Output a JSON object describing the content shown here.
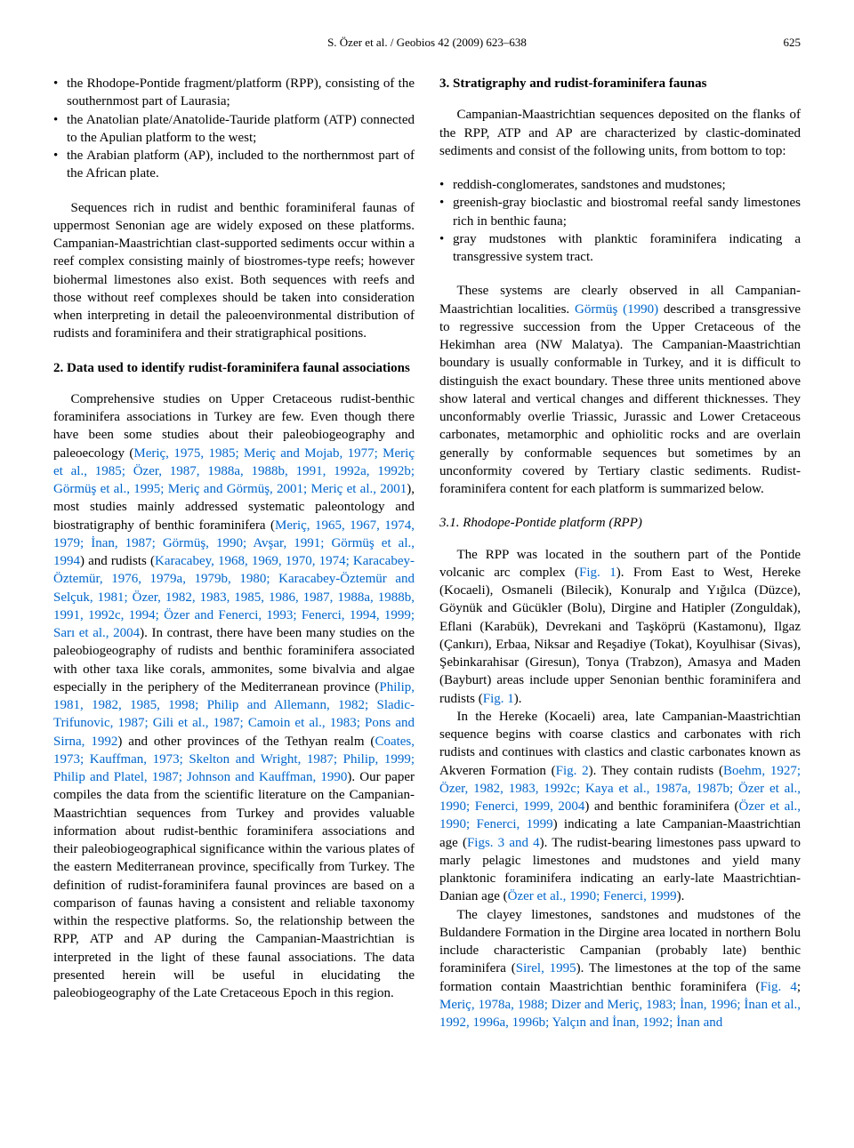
{
  "running_head": "S. Özer et al. / Geobios 42 (2009) 623–638",
  "page_number": "625",
  "left": {
    "bullet1": "the Rhodope-Pontide fragment/platform (RPP), consisting of the southernmost part of Laurasia;",
    "bullet2": "the Anatolian plate/Anatolide-Tauride platform (ATP) connected to the Apulian platform to the west;",
    "bullet3": "the Arabian platform (AP), included to the northernmost part of the African plate.",
    "p1": "Sequences rich in rudist and benthic foraminiferal faunas of uppermost Senonian age are widely exposed on these platforms. Campanian-Maastrichtian clast-supported sediments occur within a reef complex consisting mainly of biostromes-type reefs; however biohermal limestones also exist. Both sequences with reefs and those without reef complexes should be taken into consideration when interpreting in detail the paleoenvironmental distribution of rudists and foraminifera and their stratigraphical positions.",
    "h2": "2. Data used to identify rudist-foraminifera faunal associations",
    "p2a": "Comprehensive studies on Upper Cretaceous rudist-benthic foraminifera associations in Turkey are few. Even though there have been some studies about their paleobiogeography and paleoecology (",
    "c1": "Meriç, 1975, 1985; Meriç and Mojab, 1977; Meriç et al., 1985; Özer, 1987, 1988a, 1988b, 1991, 1992a, 1992b; Görmüş et al., 1995; Meriç and Görmüş, 2001; Meriç et al., 2001",
    "p2b": "), most studies mainly addressed systematic paleontology and biostratigraphy of benthic foraminifera (",
    "c2": "Meriç, 1965, 1967, 1974, 1979; İnan, 1987; Görmüş, 1990; Avşar, 1991; Görmüş et al., 1994",
    "p2c": ") and rudists (",
    "c3": "Karacabey, 1968, 1969, 1970, 1974; Karacabey-Öztemür, 1976, 1979a, 1979b, 1980; Karacabey-Öztemür and Selçuk, 1981; Özer, 1982, 1983, 1985, 1986, 1987, 1988a, 1988b, 1991, 1992c, 1994; Özer and Fenerci, 1993; Fenerci, 1994, 1999; Sarı et al., 2004",
    "p2d": "). In contrast, there have been many studies on the paleobiogeography of rudists and benthic foraminifera associated with other taxa like corals, ammonites, some bivalvia and algae especially in the periphery of the Mediterranean province (",
    "c4": "Philip, 1981, 1982, 1985, 1998; Philip and Allemann, 1982; Sladic-Trifunovic, 1987; Gili et al., 1987; Camoin et al., 1983; Pons and Sirna, 1992",
    "p2e": ") and other provinces of the Tethyan realm (",
    "c5": "Coates, 1973; Kauffman, 1973; Skelton and Wright, 1987; Philip, 1999; Philip and Platel, 1987; Johnson and Kauffman, 1990",
    "p2f": "). Our paper compiles the data from the scientific literature on the Campanian-Maastrichtian sequences from Turkey and provides valuable information about rudist-benthic foraminifera associations and their paleobiogeographical significance within the various plates of the eastern Mediterranean province, specifically from Turkey. The definition of rudist-foraminifera faunal provinces are based on a comparison of faunas having a consistent and reliable taxonomy within the respective platforms. So, the relationship between the RPP, ATP and AP during the Campanian-Maastrichtian is interpreted in the light of these faunal associations. The data presented herein will be useful in elucidating the paleobiogeography of the Late Cretaceous Epoch in this region."
  },
  "right": {
    "h3": "3. Stratigraphy and rudist-foraminifera faunas",
    "p1": "Campanian-Maastrichtian sequences deposited on the flanks of the RPP, ATP and AP are characterized by clastic-dominated sediments and consist of the following units, from bottom to top:",
    "b1": "reddish-conglomerates, sandstones and mudstones;",
    "b2": "greenish-gray bioclastic and biostromal reefal sandy limestones rich in benthic fauna;",
    "b3": "gray mudstones with planktic foraminifera indicating a transgressive system tract.",
    "p2a": "These systems are clearly observed in all Campanian-Maastrichtian localities. ",
    "c_gormus": "Görmüş (1990)",
    "p2b": " described a transgressive to regressive succession from the Upper Cretaceous of the Hekimhan area (NW Malatya). The Campanian-Maastrichtian boundary is usually conformable in Turkey, and it is difficult to distinguish the exact boundary. These three units mentioned above show lateral and vertical changes and different thicknesses. They unconformably overlie Triassic, Jurassic and Lower Cretaceous carbonates, metamorphic and ophiolitic rocks and are overlain generally by conformable sequences but sometimes by an unconformity covered by Tertiary clastic sediments. Rudist-foraminifera content for each platform is summarized below.",
    "h31": "3.1. Rhodope-Pontide platform (RPP)",
    "p3a": "The RPP was located in the southern part of the Pontide volcanic arc complex (",
    "fig1a": "Fig. 1",
    "p3b": "). From East to West, Hereke (Kocaeli), Osmaneli (Bilecik), Konuralp and Yığılca (Düzce), Göynük and Gücükler (Bolu), Dirgine and Hatipler (Zonguldak), Eflani (Karabük), Devrekani and Taşköprü (Kastamonu), Ilgaz (Çankırı), Erbaa, Niksar and Reşadiye (Tokat), Koyulhisar (Sivas), Şebinkarahisar (Giresun), Tonya (Trabzon), Amasya and Maden (Bayburt) areas include upper Senonian benthic foraminifera and rudists (",
    "fig1b": "Fig. 1",
    "p3c": ").",
    "p4a": "In the Hereke (Kocaeli) area, late Campanian-Maastrichtian sequence begins with coarse clastics and carbonates with rich rudists and continues with clastics and clastic carbonates known as Akveren Formation (",
    "fig2": "Fig. 2",
    "p4b": "). They contain rudists (",
    "c6": "Boehm, 1927; Özer, 1982, 1983, 1992c; Kaya et al., 1987a, 1987b; Özer et al., 1990; Fenerci, 1999, 2004",
    "p4c": ") and benthic foraminifera (",
    "c7": "Özer et al., 1990; Fenerci, 1999",
    "p4d": ") indicating a late Campanian-Maastrichtian age (",
    "figs34": "Figs. 3 and 4",
    "p4e": "). The rudist-bearing limestones pass upward to marly pelagic limestones and mudstones and yield many planktonic foraminifera indicating an early-late Maastrichtian-Danian age (",
    "c8": "Özer et al., 1990; Fenerci, 1999",
    "p4f": ").",
    "p5a": "The clayey limestones, sandstones and mudstones of the Buldandere Formation in the Dirgine area located in northern Bolu include characteristic Campanian (probably late) benthic foraminifera (",
    "c9": "Sirel, 1995",
    "p5b": "). The limestones at the top of the same formation contain Maastrichtian benthic foraminifera (",
    "fig4": "Fig. 4",
    "p5c": "; ",
    "c10": "Meriç, 1978a, 1988; Dizer and Meriç, 1983; İnan, 1996; İnan et al., 1992, 1996a, 1996b; Yalçın and İnan, 1992; İnan and"
  }
}
